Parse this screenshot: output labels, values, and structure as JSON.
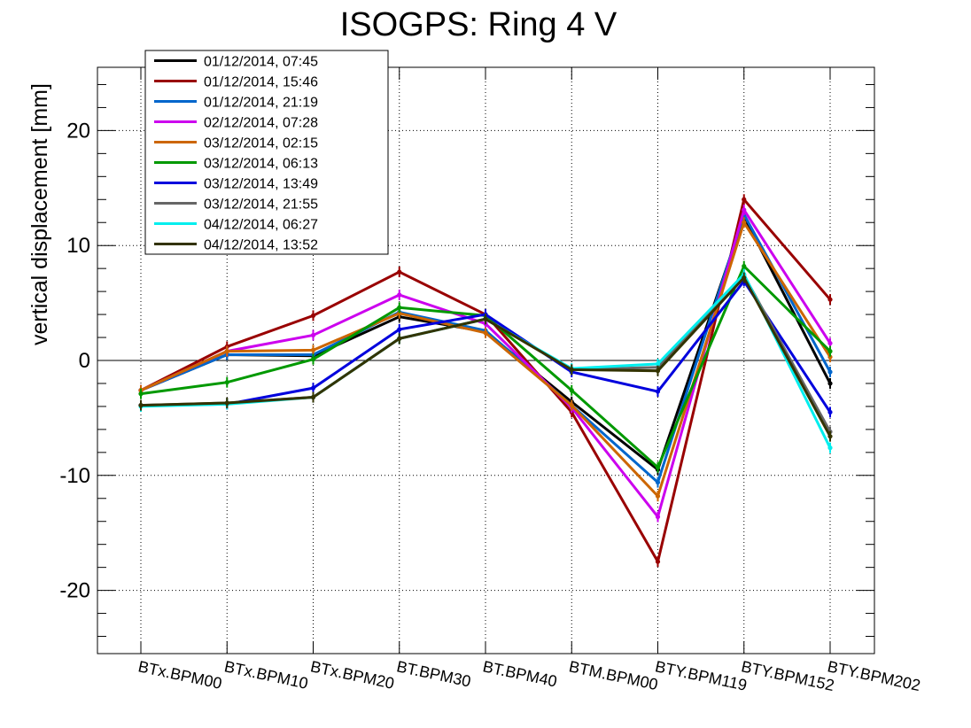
{
  "chart_data": {
    "type": "line",
    "title": "ISOGPS: Ring 4 V",
    "xlabel": "",
    "ylabel": "vertical displacement [mm]",
    "ylim": [
      -25.5,
      25.5
    ],
    "yticks": [
      -20,
      -10,
      0,
      10,
      20
    ],
    "categories": [
      "BTx.BPM00",
      "BTx.BPM10",
      "BTx.BPM20",
      "BT.BPM30",
      "BT.BPM40",
      "BTM.BPM00",
      "BTY.BPM119",
      "BTY.BPM152",
      "BTY.BPM202"
    ],
    "grid": true,
    "legend_position": "top-left",
    "series": [
      {
        "name": "01/12/2014, 07:45",
        "color": "#000000",
        "values": [
          -2.6,
          0.5,
          0.4,
          3.8,
          2.5,
          -3.6,
          -9.5,
          12.5,
          -2.0
        ]
      },
      {
        "name": "01/12/2014, 15:46",
        "color": "#990000",
        "values": [
          -2.6,
          1.2,
          3.9,
          7.7,
          4.0,
          -4.5,
          -17.5,
          14.0,
          5.3
        ]
      },
      {
        "name": "01/12/2014, 21:19",
        "color": "#0066cc",
        "values": [
          -2.6,
          0.5,
          0.5,
          4.2,
          2.6,
          -3.9,
          -10.6,
          12.7,
          -1.0
        ]
      },
      {
        "name": "02/12/2014, 07:28",
        "color": "#cc00ee",
        "values": [
          -2.6,
          0.8,
          2.2,
          5.7,
          3.2,
          -4.1,
          -13.6,
          13.1,
          1.5
        ]
      },
      {
        "name": "03/12/2014, 02:15",
        "color": "#cc6600",
        "values": [
          -2.6,
          0.8,
          0.9,
          4.1,
          2.4,
          -3.9,
          -11.8,
          12.0,
          0.3
        ]
      },
      {
        "name": "03/12/2014, 06:13",
        "color": "#009900",
        "values": [
          -2.9,
          -1.9,
          0.1,
          4.6,
          3.9,
          -2.6,
          -9.3,
          8.2,
          0.8
        ]
      },
      {
        "name": "03/12/2014, 13:49",
        "color": "#0000dd",
        "values": [
          -3.9,
          -3.8,
          -2.4,
          2.7,
          4.0,
          -1.0,
          -2.7,
          6.9,
          -4.5
        ]
      },
      {
        "name": "03/12/2014, 21:55",
        "color": "#666666",
        "values": [
          -3.9,
          -3.7,
          -3.2,
          1.9,
          3.6,
          -0.8,
          -0.6,
          7.4,
          -6.2
        ]
      },
      {
        "name": "04/12/2014, 06:27",
        "color": "#00eeee",
        "values": [
          -4.0,
          -3.8,
          -3.2,
          1.9,
          3.6,
          -0.7,
          -0.3,
          7.5,
          -7.6
        ]
      },
      {
        "name": "04/12/2014, 13:52",
        "color": "#333300",
        "values": [
          -3.9,
          -3.7,
          -3.2,
          1.9,
          3.6,
          -0.8,
          -0.9,
          7.2,
          -6.6
        ]
      }
    ]
  }
}
